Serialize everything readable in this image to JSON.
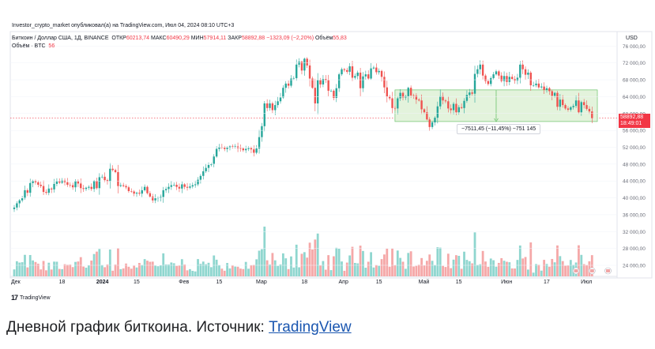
{
  "header": {
    "published": "Investor_crypto_market опубликовал(а) на TradingView.com, Июл 04, 2024 08:10 UTC+3",
    "symbol": "Биткоин / Доллар США, 1Д, BINANCE",
    "open_label": "ОТКР",
    "open_value": "60213,74",
    "high_label": "МАКС",
    "high_value": "60490,29",
    "low_label": "МИН",
    "low_value": "57914,11",
    "close_label": "ЗАКР",
    "close_value": "58892,88",
    "change_value": "−1323,09 (−2,20%)",
    "volume_label": "Объём",
    "volume_value": "55,83",
    "volume_series": "Объём · BTC",
    "volume_series_value": "56"
  },
  "measure": {
    "text": "−7511,45 (−11,45%) −751 145"
  },
  "price_tag": {
    "price": "58892,88",
    "time": "18:49:01"
  },
  "logo": {
    "text": "TradingView",
    "mark": "17"
  },
  "caption": {
    "text": "Дневной график биткоина. Источник: ",
    "link": "TradingView"
  },
  "colors": {
    "up": "#26a69a",
    "down": "#ef5350",
    "vol_up": "#8fd6cf",
    "vol_down": "#f5a8a8",
    "measure_fill": "#e3f3dc",
    "measure_stroke": "#6cc26c"
  },
  "chart_data": {
    "type": "candlestick",
    "currency": "USD",
    "y_axis": {
      "ticks": [
        24000,
        28000,
        32000,
        36000,
        40000,
        44000,
        48000,
        52000,
        56000,
        60000,
        64000,
        68000,
        72000,
        76000
      ],
      "tick_labels": [
        "24 000,00",
        "28 000,00",
        "32 000,00",
        "36 000,00",
        "40 000,00",
        "44 000,00",
        "48 000,00",
        "52 000,00",
        "56 000,00",
        "60 000,00",
        "64 000,00",
        "68 000,00",
        "72 000,00",
        "76 000,00"
      ],
      "range": [
        21000,
        78500
      ]
    },
    "x_axis": {
      "labels": [
        {
          "text": "Дек",
          "i": 0,
          "bold": false
        },
        {
          "text": "18",
          "i": 18,
          "bold": false
        },
        {
          "text": "2024",
          "i": 32,
          "bold": true
        },
        {
          "text": "15",
          "i": 46,
          "bold": false
        },
        {
          "text": "Фев",
          "i": 63,
          "bold": false
        },
        {
          "text": "15",
          "i": 77,
          "bold": false
        },
        {
          "text": "Мар",
          "i": 92,
          "bold": false
        },
        {
          "text": "18",
          "i": 109,
          "bold": false
        },
        {
          "text": "Апр",
          "i": 123,
          "bold": false
        },
        {
          "text": "15",
          "i": 137,
          "bold": false
        },
        {
          "text": "Май",
          "i": 153,
          "bold": false
        },
        {
          "text": "15",
          "i": 167,
          "bold": false
        },
        {
          "text": "Июн",
          "i": 184,
          "bold": false
        },
        {
          "text": "17",
          "i": 200,
          "bold": false
        },
        {
          "text": "Июл",
          "i": 214,
          "bold": false
        }
      ]
    },
    "closes": [
      37700,
      38700,
      39400,
      39900,
      41800,
      41200,
      43500,
      44000,
      43700,
      43100,
      42800,
      41400,
      41200,
      42200,
      42000,
      43300,
      43900,
      43600,
      44100,
      43700,
      43100,
      43000,
      42500,
      43900,
      43400,
      42300,
      42100,
      42400,
      42600,
      42100,
      44000,
      42300,
      44900,
      45000,
      44200,
      43900,
      46900,
      46600,
      46100,
      42800,
      43000,
      42800,
      42500,
      41600,
      41500,
      41000,
      41200,
      41000,
      41800,
      42600,
      41100,
      40300,
      39400,
      39900,
      40000,
      40200,
      41800,
      42100,
      42600,
      43000,
      43100,
      42600,
      42200,
      43200,
      42600,
      42400,
      42700,
      43000,
      43200,
      44300,
      45200,
      46300,
      47100,
      47800,
      48000,
      49800,
      51600,
      52000,
      51900,
      51600,
      51900,
      52200,
      52100,
      52200,
      51800,
      51700,
      51300,
      51600,
      51800,
      51500,
      50700,
      51700,
      54400,
      57000,
      62400,
      61300,
      62400,
      60800,
      62000,
      62900,
      63800,
      66100,
      67100,
      66600,
      68300,
      68400,
      71600,
      72300,
      70200,
      73000,
      71400,
      68300,
      66100,
      62400,
      67900,
      66900,
      68200,
      67900,
      65400,
      65400,
      63700,
      66000,
      69300,
      70500,
      70300,
      69900,
      71200,
      68500,
      68900,
      69700,
      66000,
      68800,
      69300,
      68300,
      70700,
      70900,
      69800,
      70100,
      68700,
      66200,
      64000,
      63600,
      61300,
      61200,
      63600,
      64900,
      63800,
      64100,
      66100,
      64300,
      64200,
      63300,
      63100,
      61000,
      60300,
      58600,
      56800,
      57900,
      59000,
      61700,
      64100,
      63100,
      62900,
      61200,
      60800,
      62300,
      60300,
      61500,
      61300,
      63000,
      64400,
      65000,
      64700,
      69400,
      70500,
      71600,
      69000,
      67700,
      67000,
      68400,
      69300,
      70000,
      69000,
      67700,
      68900,
      67500,
      68700,
      68200,
      67800,
      68500,
      71600,
      70500,
      69200,
      69700,
      66700,
      66700,
      67100,
      66200,
      66400,
      65600,
      66000,
      65300,
      64200,
      64900,
      61600,
      63300,
      62000,
      61200,
      60900,
      61500,
      61800,
      63100,
      60300,
      62700,
      62000,
      61100,
      60500,
      58900
    ]
  }
}
